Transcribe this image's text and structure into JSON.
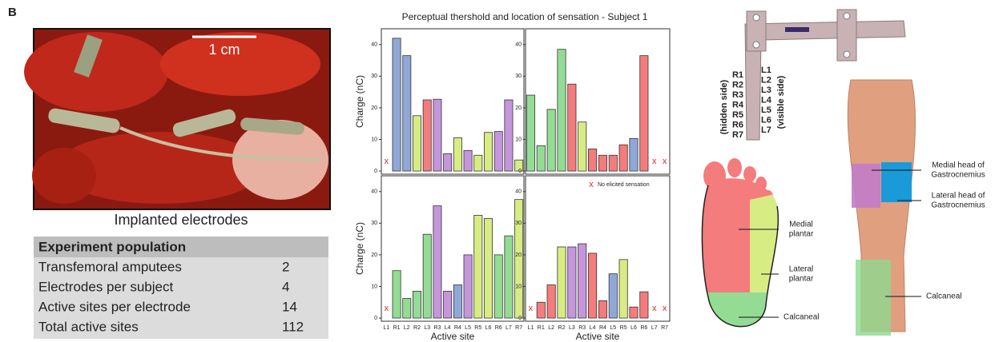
{
  "panel_label": "B",
  "photo": {
    "scale_bar": "1 cm",
    "caption": "Implanted electrodes"
  },
  "table": {
    "header": "Experiment population",
    "rows": [
      [
        "Transfemoral amputees",
        2
      ],
      [
        "Electrodes per subject",
        4
      ],
      [
        "Active sites per electrode",
        14
      ],
      [
        "Total active sites",
        112
      ]
    ]
  },
  "chart_data": [
    {
      "type": "bar",
      "title": "Perceptual thershold and location of sensation - Subject 1",
      "y_label": "Charge (nC)",
      "values": [
        null,
        42,
        36.5,
        17.5,
        22.5,
        22.7,
        5.5,
        10.5,
        6.5,
        5,
        12.2,
        12.5,
        22.5,
        3.5
      ],
      "colors": [
        "#ffffff",
        "#8fa8d8",
        "#8fa8d8",
        "#d8ec84",
        "#f47c7c",
        "#c596dc",
        "#c596dc",
        "#d8ec84",
        "#c596dc",
        "#d8ec84",
        "#d8ec84",
        "#c596dc",
        "#c596dc",
        "#d8ec84"
      ],
      "ylim": [
        -1,
        45
      ],
      "yticks": [
        0,
        10,
        20,
        30,
        40
      ]
    },
    {
      "type": "bar",
      "values": [
        24,
        8,
        19.5,
        38.5,
        27.5,
        15.5,
        7,
        5,
        5,
        8.3,
        10.3,
        36.5,
        null,
        null
      ],
      "colors": [
        "#94dc94",
        "#94dc94",
        "#94dc94",
        "#94dc94",
        "#f47c7c",
        "#d8ec84",
        "#f47c7c",
        "#f47c7c",
        "#f47c7c",
        "#f47c7c",
        "#8fa8d8",
        "#f47c7c",
        "#ffffff",
        "#ffffff"
      ],
      "ylim": [
        -1,
        45
      ],
      "yticks": [
        0,
        10,
        20,
        30,
        40
      ]
    },
    {
      "type": "bar",
      "y_label": "Charge (nC)",
      "x_label": "Active site",
      "categories": [
        "L1",
        "R1",
        "L2",
        "R2",
        "L3",
        "R3",
        "L4",
        "R4",
        "L5",
        "R5",
        "L6",
        "R6",
        "L7",
        "R7"
      ],
      "values": [
        null,
        15,
        6.2,
        8.5,
        26.5,
        35.5,
        8.5,
        10.5,
        20,
        32.5,
        31.5,
        20,
        26,
        37.5
      ],
      "colors": [
        "#ffffff",
        "#94dc94",
        "#94dc94",
        "#94dc94",
        "#94dc94",
        "#c596dc",
        "#c596dc",
        "#8fa8d8",
        "#c596dc",
        "#d8ec84",
        "#d8ec84",
        "#94dc94",
        "#94dc94",
        "#d8ec84"
      ],
      "ylim": [
        -1,
        45
      ],
      "yticks": [
        0,
        10,
        20,
        30,
        40
      ]
    },
    {
      "type": "bar",
      "x_label": "Active site",
      "categories": [
        "L1",
        "R1",
        "L2",
        "R2",
        "L3",
        "R3",
        "L4",
        "R4",
        "L5",
        "R5",
        "L6",
        "R6",
        "L7",
        "R7"
      ],
      "values": [
        null,
        5,
        10.5,
        22.5,
        22.5,
        23.5,
        20.5,
        5.5,
        14,
        18.5,
        3.5,
        8.3,
        null,
        null
      ],
      "colors": [
        "#ffffff",
        "#f47c7c",
        "#f47c7c",
        "#d8ec84",
        "#c596dc",
        "#c596dc",
        "#f47c7c",
        "#f47c7c",
        "#8fa8d8",
        "#d8ec84",
        "#f47c7c",
        "#f47c7c",
        "#ffffff",
        "#ffffff"
      ],
      "ylim": [
        -1,
        45
      ],
      "yticks": [
        0,
        10,
        20,
        30,
        40
      ],
      "legend": {
        "marker": "x",
        "label": "No elicited sensation"
      }
    }
  ],
  "electrode": {
    "right_sites": [
      "R1",
      "R2",
      "R3",
      "R4",
      "R5",
      "R6",
      "R7"
    ],
    "left_sites": [
      "L1",
      "L2",
      "L3",
      "L4",
      "L5",
      "L6",
      "L7"
    ],
    "hidden_label": "(hidden side)",
    "visible_label": "(visible side)"
  },
  "foot": {
    "labels": [
      [
        "Medial",
        "plantar"
      ],
      [
        "Lateral",
        "plantar"
      ],
      [
        "Calcaneal"
      ]
    ]
  },
  "leg": {
    "labels": [
      [
        "Medial head of",
        "Gastrocnemius"
      ],
      [
        "Lateral head of",
        "Gastrocnemius"
      ],
      [
        "Calcaneal"
      ]
    ]
  }
}
